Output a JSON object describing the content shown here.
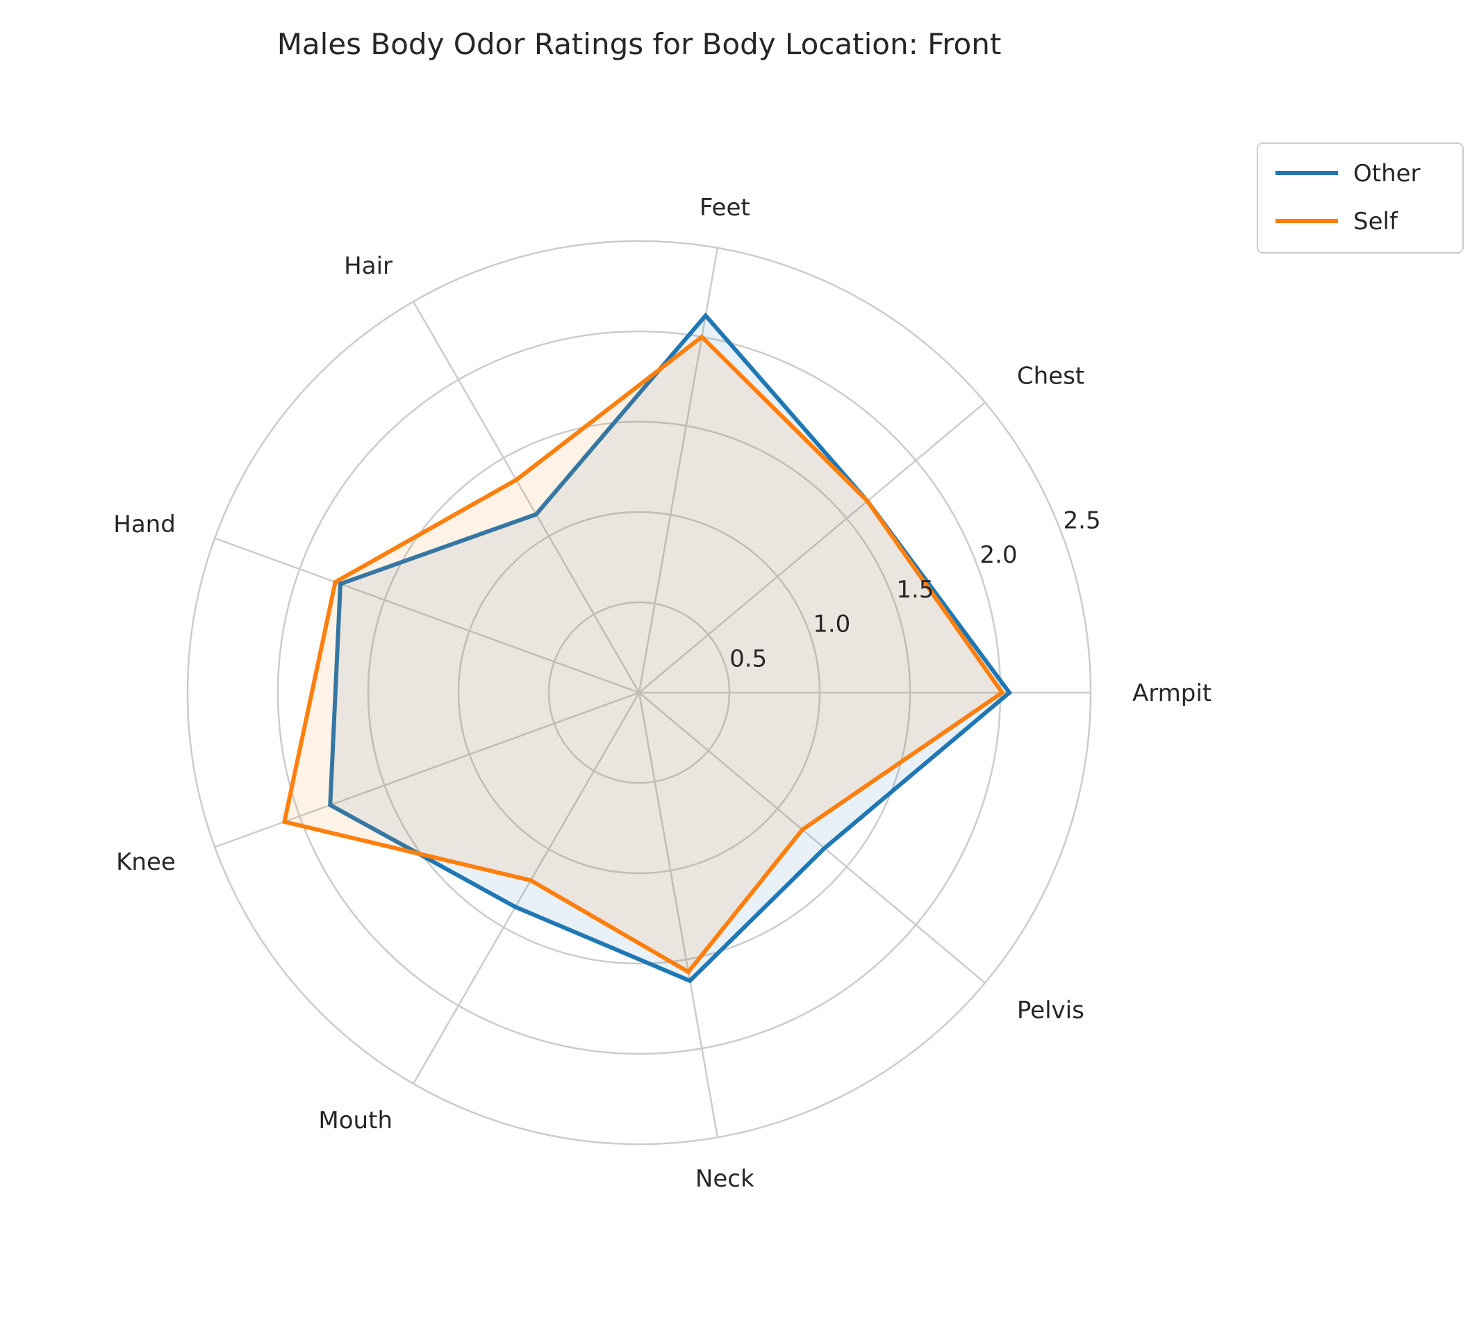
{
  "chart_data": {
    "type": "radar",
    "title": "Males Body Odor Ratings for Body Location: Front",
    "categories": [
      "Armpit",
      "Chest",
      "Feet",
      "Hair",
      "Hand",
      "Knee",
      "Mouth",
      "Neck",
      "Pelvis"
    ],
    "series": [
      {
        "name": "Other",
        "color": "#1f77b4",
        "values": [
          2.05,
          1.65,
          2.12,
          1.14,
          1.76,
          1.82,
          1.37,
          1.62,
          1.34
        ]
      },
      {
        "name": "Self",
        "color": "#ff7f0e",
        "values": [
          2.01,
          1.65,
          2.0,
          1.36,
          1.79,
          2.09,
          1.2,
          1.57,
          1.18
        ]
      }
    ],
    "rlim": [
      0,
      2.5
    ],
    "rticks": [
      "0.5",
      "1.0",
      "1.5",
      "2.0",
      "2.5"
    ],
    "grid": true,
    "legend_position": "upper right, outside plot"
  }
}
